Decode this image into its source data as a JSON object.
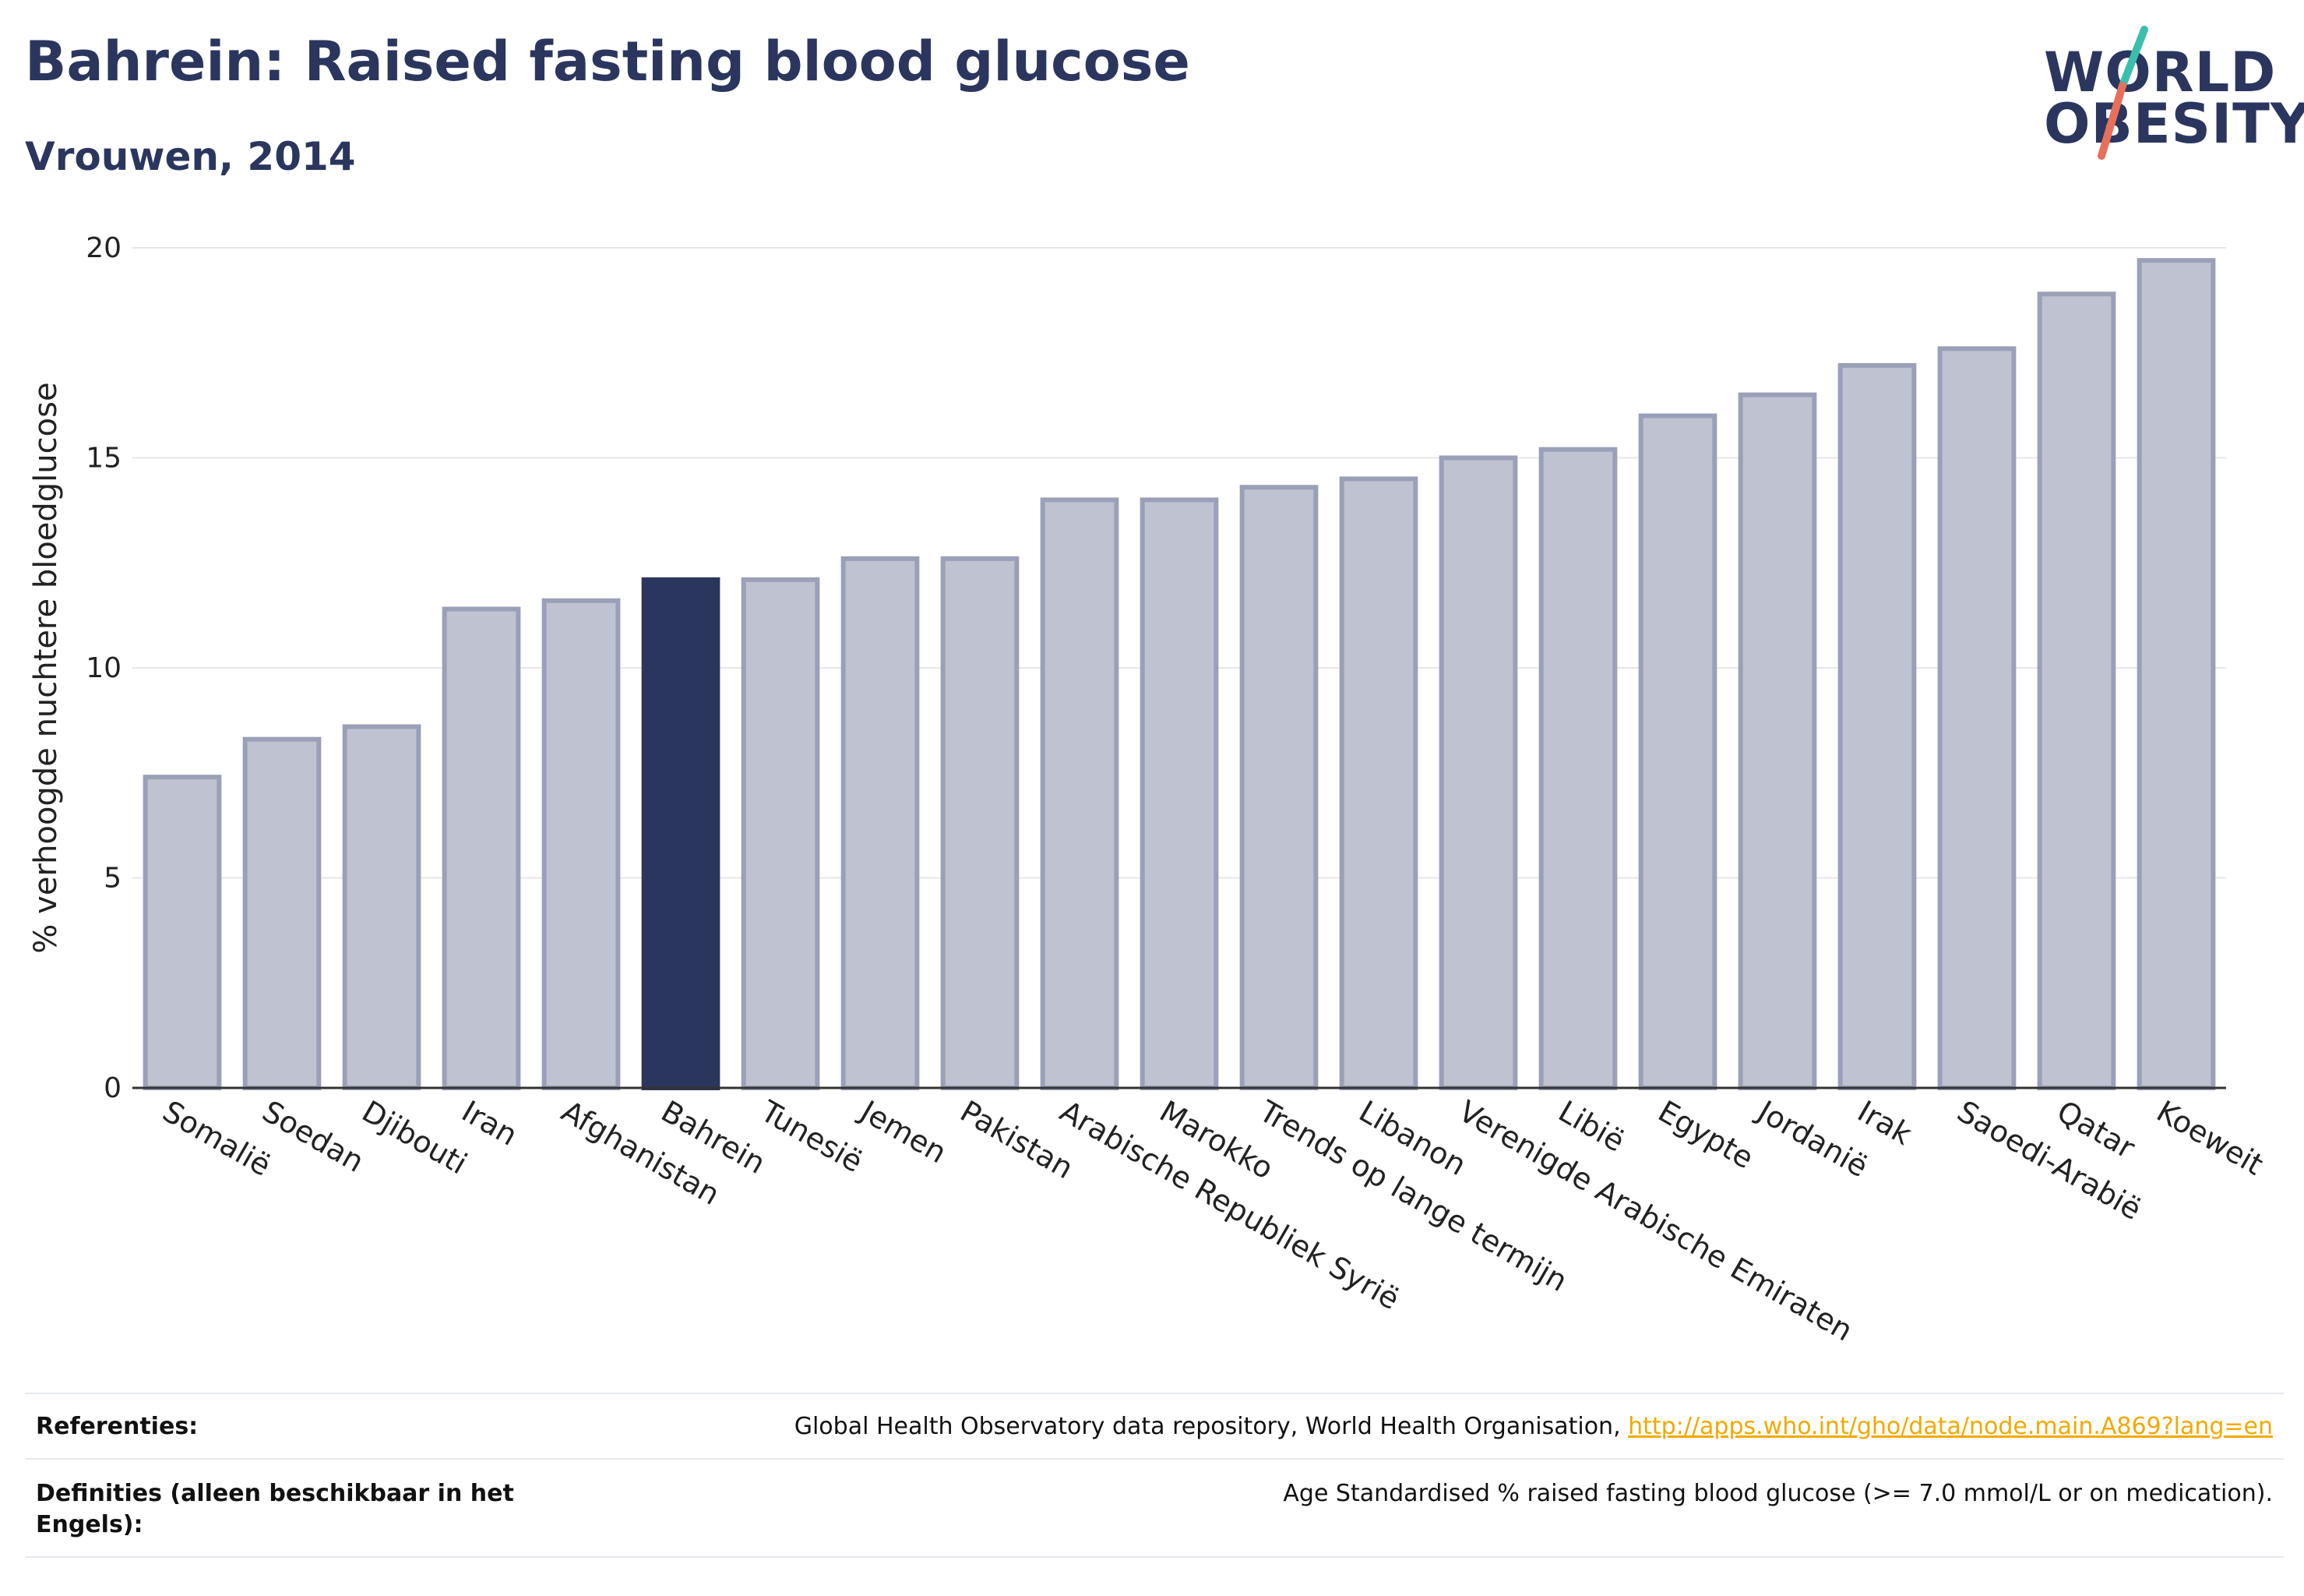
{
  "header": {
    "title": "Bahrein: Raised fasting blood glucose",
    "subtitle": "Vrouwen, 2014"
  },
  "logo": {
    "line1": "WORLD",
    "line2": "OBESITY",
    "colors": {
      "text": "#2b365f",
      "slash_top": "#3bbfad",
      "slash_bottom": "#e8705a"
    }
  },
  "chart_data": {
    "type": "bar",
    "ylabel": "% verhoogde nuchtere bloedglucose",
    "xlabel": "",
    "ylim": [
      0,
      20
    ],
    "yticks": [
      0,
      5,
      10,
      15,
      20
    ],
    "grid": true,
    "highlight": "Bahrein",
    "colors": {
      "bar": "#bfc2d0",
      "bar_border": "#9aa0b8",
      "highlight": "#2b365f"
    },
    "categories": [
      "Somalië",
      "Soedan",
      "Djibouti",
      "Iran",
      "Afghanistan",
      "Bahrein",
      "Tunesië",
      "Jemen",
      "Pakistan",
      "Arabische Republiek Syrië",
      "Marokko",
      "Trends op lange termijn",
      "Libanon",
      "Verenigde Arabische Emiraten",
      "Libië",
      "Egypte",
      "Jordanië",
      "Irak",
      "Saoedi-Arabië",
      "Qatar",
      "Koeweit"
    ],
    "values": [
      7.4,
      8.3,
      8.6,
      11.4,
      11.6,
      12.1,
      12.1,
      12.6,
      12.6,
      14.0,
      14.0,
      14.3,
      14.5,
      15.0,
      15.2,
      16.0,
      16.5,
      17.2,
      17.6,
      18.9,
      19.7
    ]
  },
  "footer": {
    "references_label": "Referenties:",
    "references_text": "Global Health Observatory data repository, World Health Organisation, ",
    "references_link": "http://apps.who.int/gho/data/node.main.A869?lang=en",
    "definitions_label": "Definities (alleen beschikbaar in het Engels):",
    "definitions_text": "Age Standardised % raised fasting blood glucose (>= 7.0 mmol/L or on medication)."
  }
}
